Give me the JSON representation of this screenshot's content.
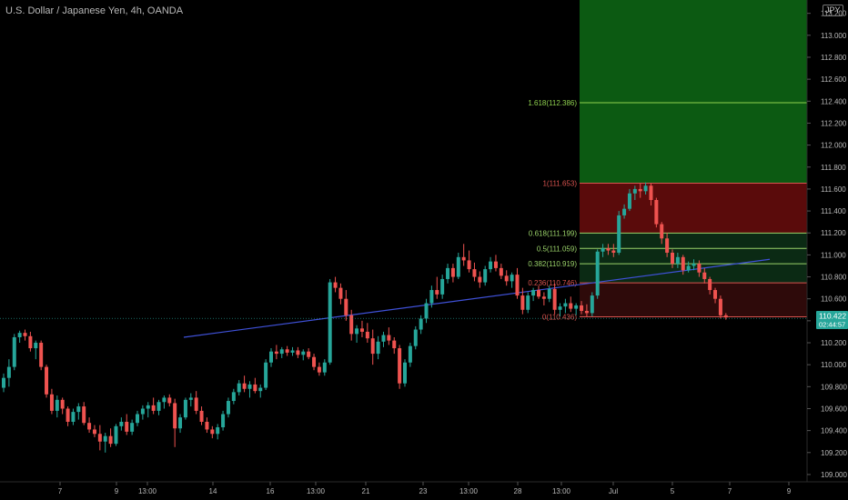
{
  "header": {
    "title": "U.S. Dollar / Japanese Yen, 4h, OANDA",
    "currency": "JPY"
  },
  "price_tag": {
    "price": "110.422",
    "countdown": "02:44:57"
  },
  "chart_data": {
    "type": "candlestick",
    "title": "U.S. Dollar / Japanese Yen, 4h, OANDA",
    "y_ticks": [
      "109.000",
      "109.200",
      "109.400",
      "109.600",
      "109.800",
      "110.000",
      "110.200",
      "110.400",
      "110.600",
      "110.800",
      "111.000",
      "111.200",
      "111.400",
      "111.600",
      "111.800",
      "112.000",
      "112.200",
      "112.400",
      "112.600",
      "112.800",
      "113.000",
      "113.200"
    ],
    "ylim": [
      108.95,
      113.28
    ],
    "x_ticks": [
      "7",
      "9",
      "13:00",
      "14",
      "16",
      "13:00",
      "21",
      "23",
      "13:00",
      "28",
      "13:00",
      "Jul",
      "5",
      "7",
      "9"
    ],
    "fib_levels": [
      {
        "label": "0(110.436)",
        "value": 110.436,
        "color": "#d9534f"
      },
      {
        "label": "0.236(110.746)",
        "value": 110.746,
        "color": "#d9534f"
      },
      {
        "label": "0.382(110.919)",
        "value": 110.919,
        "color": "#9bd36a"
      },
      {
        "label": "0.5(111.059)",
        "value": 111.059,
        "color": "#9bd36a"
      },
      {
        "label": "0.618(111.199)",
        "value": 111.199,
        "color": "#9bd36a"
      },
      {
        "label": "1(111.653)",
        "value": 111.653,
        "color": "#d9534f"
      },
      {
        "label": "1.618(112.386)",
        "value": 112.386,
        "color": "#8fd14f"
      }
    ],
    "trendline": {
      "start": 110.25,
      "end": 110.96
    },
    "colors": {
      "up": "#26a69a",
      "down": "#ef5350",
      "trendline": "#3f51d8",
      "zone_green": "#0c5a12",
      "zone_red": "#5a0b0b"
    },
    "ohlc": [
      [
        109.79,
        109.92,
        109.75,
        109.88
      ],
      [
        109.88,
        110.05,
        109.8,
        109.98
      ],
      [
        109.98,
        110.28,
        109.95,
        110.25
      ],
      [
        110.25,
        110.31,
        110.2,
        110.29
      ],
      [
        110.29,
        110.32,
        110.22,
        110.26
      ],
      [
        110.26,
        110.3,
        110.12,
        110.15
      ],
      [
        110.15,
        110.22,
        110.05,
        110.2
      ],
      [
        110.2,
        110.22,
        109.95,
        109.98
      ],
      [
        109.98,
        110.0,
        109.7,
        109.73
      ],
      [
        109.73,
        109.78,
        109.55,
        109.58
      ],
      [
        109.58,
        109.72,
        109.52,
        109.68
      ],
      [
        109.68,
        109.7,
        109.55,
        109.6
      ],
      [
        109.6,
        109.62,
        109.44,
        109.48
      ],
      [
        109.48,
        109.6,
        109.45,
        109.57
      ],
      [
        109.57,
        109.65,
        109.5,
        109.62
      ],
      [
        109.62,
        109.66,
        109.45,
        109.47
      ],
      [
        109.47,
        109.52,
        109.38,
        109.41
      ],
      [
        109.41,
        109.45,
        109.34,
        109.37
      ],
      [
        109.37,
        109.45,
        109.22,
        109.3
      ],
      [
        109.3,
        109.38,
        109.2,
        109.35
      ],
      [
        109.35,
        109.42,
        109.25,
        109.28
      ],
      [
        109.28,
        109.46,
        109.26,
        109.44
      ],
      [
        109.44,
        109.52,
        109.4,
        109.48
      ],
      [
        109.48,
        109.55,
        109.36,
        109.39
      ],
      [
        109.39,
        109.5,
        109.36,
        109.47
      ],
      [
        109.47,
        109.58,
        109.44,
        109.55
      ],
      [
        109.55,
        109.63,
        109.5,
        109.6
      ],
      [
        109.6,
        109.66,
        109.52,
        109.63
      ],
      [
        109.63,
        109.7,
        109.55,
        109.58
      ],
      [
        109.58,
        109.68,
        109.54,
        109.66
      ],
      [
        109.66,
        109.72,
        109.6,
        109.7
      ],
      [
        109.7,
        109.73,
        109.62,
        109.65
      ],
      [
        109.65,
        109.69,
        109.25,
        109.42
      ],
      [
        109.42,
        109.55,
        109.38,
        109.52
      ],
      [
        109.52,
        109.7,
        109.5,
        109.68
      ],
      [
        109.68,
        109.74,
        109.62,
        109.7
      ],
      [
        109.7,
        109.76,
        109.55,
        109.58
      ],
      [
        109.58,
        109.62,
        109.45,
        109.48
      ],
      [
        109.48,
        109.52,
        109.38,
        109.41
      ],
      [
        109.41,
        109.44,
        109.33,
        109.37
      ],
      [
        109.37,
        109.46,
        109.32,
        109.43
      ],
      [
        109.43,
        109.58,
        109.4,
        109.55
      ],
      [
        109.55,
        109.7,
        109.52,
        109.67
      ],
      [
        109.67,
        109.78,
        109.64,
        109.75
      ],
      [
        109.75,
        109.86,
        109.72,
        109.83
      ],
      [
        109.83,
        109.9,
        109.75,
        109.78
      ],
      [
        109.78,
        109.85,
        109.7,
        109.82
      ],
      [
        109.82,
        109.88,
        109.74,
        109.76
      ],
      [
        109.76,
        109.82,
        109.7,
        109.79
      ],
      [
        109.79,
        110.05,
        109.77,
        110.02
      ],
      [
        110.02,
        110.15,
        109.98,
        110.12
      ],
      [
        110.12,
        110.18,
        110.05,
        110.1
      ],
      [
        110.1,
        110.16,
        110.06,
        110.14
      ],
      [
        110.14,
        110.17,
        110.08,
        110.11
      ],
      [
        110.11,
        110.16,
        110.08,
        110.13
      ],
      [
        110.13,
        110.16,
        110.06,
        110.09
      ],
      [
        110.09,
        110.14,
        110.04,
        110.12
      ],
      [
        110.12,
        110.15,
        110.05,
        110.07
      ],
      [
        110.07,
        110.1,
        109.95,
        109.98
      ],
      [
        109.98,
        110.02,
        109.9,
        109.93
      ],
      [
        109.93,
        110.05,
        109.9,
        110.02
      ],
      [
        110.02,
        110.78,
        110.0,
        110.75
      ],
      [
        110.75,
        110.8,
        110.66,
        110.7
      ],
      [
        110.7,
        110.74,
        110.55,
        110.6
      ],
      [
        110.6,
        110.68,
        110.4,
        110.45
      ],
      [
        110.45,
        110.5,
        110.22,
        110.28
      ],
      [
        110.28,
        110.36,
        110.2,
        110.33
      ],
      [
        110.33,
        110.4,
        110.25,
        110.3
      ],
      [
        110.3,
        110.38,
        110.2,
        110.24
      ],
      [
        110.24,
        110.32,
        110.0,
        110.1
      ],
      [
        110.1,
        110.26,
        110.05,
        110.21
      ],
      [
        110.21,
        110.3,
        110.16,
        110.27
      ],
      [
        110.27,
        110.34,
        110.18,
        110.22
      ],
      [
        110.22,
        110.25,
        110.1,
        110.15
      ],
      [
        110.15,
        110.18,
        109.78,
        109.83
      ],
      [
        109.83,
        110.05,
        109.8,
        110.02
      ],
      [
        110.02,
        110.2,
        109.98,
        110.17
      ],
      [
        110.17,
        110.35,
        110.14,
        110.32
      ],
      [
        110.32,
        110.45,
        110.28,
        110.42
      ],
      [
        110.42,
        110.6,
        110.38,
        110.56
      ],
      [
        110.56,
        110.72,
        110.52,
        110.68
      ],
      [
        110.68,
        110.8,
        110.6,
        110.64
      ],
      [
        110.64,
        110.82,
        110.6,
        110.78
      ],
      [
        110.78,
        110.92,
        110.74,
        110.88
      ],
      [
        110.88,
        110.92,
        110.75,
        110.8
      ],
      [
        110.8,
        111.02,
        110.78,
        110.98
      ],
      [
        110.98,
        111.1,
        110.9,
        110.95
      ],
      [
        110.95,
        111.04,
        110.84,
        110.87
      ],
      [
        110.87,
        110.93,
        110.76,
        110.8
      ],
      [
        110.8,
        110.85,
        110.7,
        110.75
      ],
      [
        110.75,
        110.9,
        110.72,
        110.87
      ],
      [
        110.87,
        110.98,
        110.84,
        110.94
      ],
      [
        110.94,
        111.0,
        110.85,
        110.88
      ],
      [
        110.88,
        110.92,
        110.78,
        110.81
      ],
      [
        110.81,
        110.86,
        110.72,
        110.76
      ],
      [
        110.76,
        110.84,
        110.7,
        110.82
      ],
      [
        110.82,
        110.88,
        110.6,
        110.63
      ],
      [
        110.63,
        110.7,
        110.46,
        110.5
      ],
      [
        110.5,
        110.66,
        110.47,
        110.63
      ],
      [
        110.63,
        110.7,
        110.58,
        110.68
      ],
      [
        110.68,
        110.72,
        110.6,
        110.62
      ],
      [
        110.62,
        110.66,
        110.54,
        110.6
      ],
      [
        110.6,
        110.72,
        110.57,
        110.69
      ],
      [
        110.69,
        110.74,
        110.46,
        110.5
      ],
      [
        110.5,
        110.56,
        110.44,
        110.53
      ],
      [
        110.53,
        110.6,
        110.47,
        110.56
      ],
      [
        110.56,
        110.62,
        110.48,
        110.51
      ],
      [
        110.51,
        110.56,
        110.45,
        110.54
      ],
      [
        110.54,
        110.58,
        110.46,
        110.49
      ],
      [
        110.49,
        110.55,
        110.44,
        110.47
      ],
      [
        110.47,
        110.66,
        110.44,
        110.63
      ],
      [
        110.63,
        111.05,
        110.6,
        111.03
      ],
      [
        111.03,
        111.1,
        110.98,
        111.06
      ],
      [
        111.06,
        111.1,
        111.0,
        111.04
      ],
      [
        111.04,
        111.1,
        110.98,
        111.02
      ],
      [
        111.02,
        111.4,
        111.0,
        111.36
      ],
      [
        111.36,
        111.46,
        111.33,
        111.42
      ],
      [
        111.42,
        111.6,
        111.4,
        111.56
      ],
      [
        111.56,
        111.63,
        111.5,
        111.6
      ],
      [
        111.6,
        111.65,
        111.52,
        111.58
      ],
      [
        111.58,
        111.66,
        111.55,
        111.63
      ],
      [
        111.63,
        111.65,
        111.45,
        111.5
      ],
      [
        111.5,
        111.52,
        111.25,
        111.28
      ],
      [
        111.28,
        111.3,
        111.1,
        111.15
      ],
      [
        111.15,
        111.2,
        110.98,
        111.02
      ],
      [
        111.02,
        111.05,
        110.88,
        110.92
      ],
      [
        110.92,
        111.02,
        110.88,
        110.98
      ],
      [
        110.98,
        111.0,
        110.82,
        110.86
      ],
      [
        110.86,
        110.94,
        110.84,
        110.9
      ],
      [
        110.9,
        110.96,
        110.86,
        110.92
      ],
      [
        110.92,
        110.95,
        110.8,
        110.84
      ],
      [
        110.84,
        110.88,
        110.74,
        110.78
      ],
      [
        110.78,
        110.8,
        110.64,
        110.68
      ],
      [
        110.68,
        110.7,
        110.56,
        110.6
      ],
      [
        110.6,
        110.63,
        110.42,
        110.45
      ],
      [
        110.45,
        110.47,
        110.41,
        110.43
      ]
    ]
  }
}
